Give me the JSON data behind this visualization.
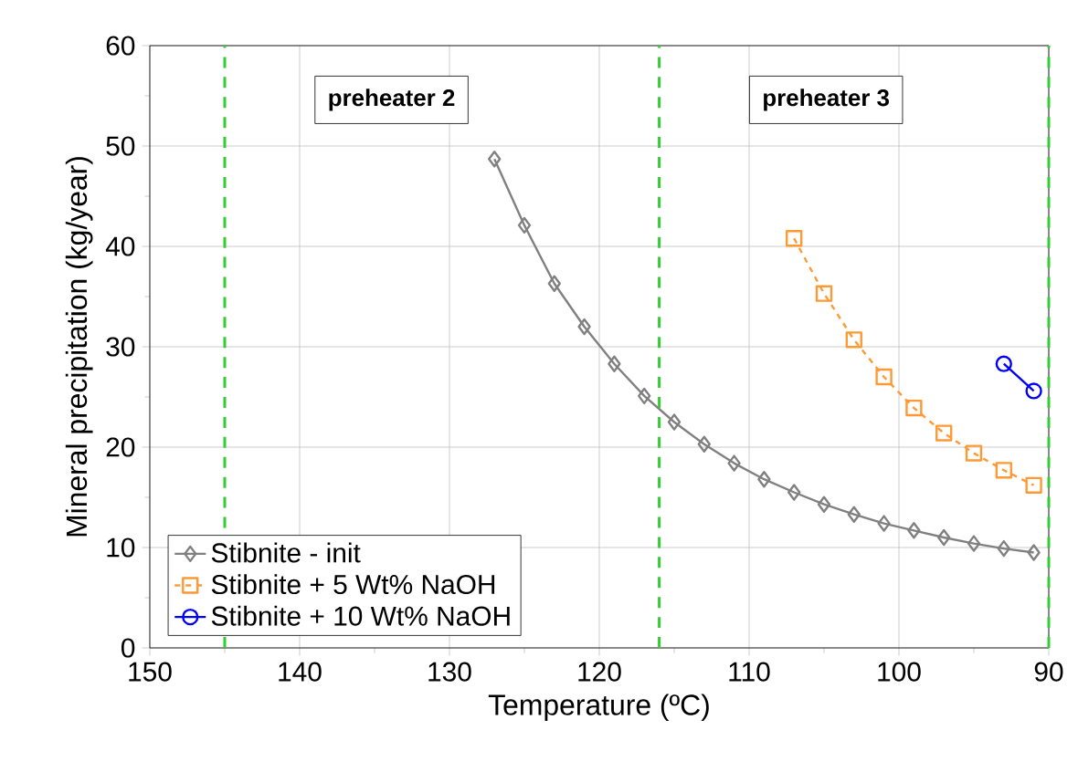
{
  "chart_data": {
    "type": "line",
    "xlabel": "Temperature (ºC)",
    "ylabel": "Mineral precipitation (kg/year)",
    "xlim": [
      150,
      90
    ],
    "ylim": [
      0,
      60
    ],
    "xticks": [
      150,
      140,
      130,
      120,
      110,
      100,
      90
    ],
    "yticks": [
      0,
      10,
      20,
      30,
      40,
      50,
      60
    ],
    "grid": true,
    "legend": "bottom left",
    "series": [
      {
        "name": "Stibnite - init",
        "color": "#808080",
        "marker": "diamond",
        "line_style": "solid",
        "x": [
          127,
          125,
          123,
          121,
          119,
          117,
          115,
          113,
          111,
          109,
          107,
          105,
          103,
          101,
          99,
          97,
          95,
          93,
          91
        ],
        "values": [
          48.7,
          42.1,
          36.3,
          32.0,
          28.3,
          25.1,
          22.5,
          20.3,
          18.4,
          16.8,
          15.5,
          14.3,
          13.3,
          12.4,
          11.7,
          11.0,
          10.4,
          9.9,
          9.5
        ]
      },
      {
        "name": "Stibnite + 5 Wt% NaOH",
        "color": "#ff9933",
        "marker": "square",
        "line_style": "dashed",
        "x": [
          107,
          105,
          103,
          101,
          99,
          97,
          95,
          93,
          91
        ],
        "values": [
          40.8,
          35.3,
          30.7,
          27.0,
          23.9,
          21.4,
          19.4,
          17.7,
          16.2
        ]
      },
      {
        "name": "Stibnite + 10 Wt% NaOH",
        "color": "#0000ff",
        "marker": "circle",
        "line_style": "solid",
        "x": [
          93,
          91
        ],
        "values": [
          28.3,
          25.6
        ]
      }
    ],
    "ref_lines": [
      {
        "axis": "x",
        "value": 145,
        "color": "#33cc33",
        "line_style": "dashed"
      },
      {
        "axis": "x",
        "value": 116,
        "color": "#33cc33",
        "line_style": "dashed"
      },
      {
        "axis": "x",
        "value": 90,
        "color": "#33cc33",
        "line_style": "dashed"
      }
    ],
    "annotations": [
      "preheater 2",
      "preheater 3"
    ]
  }
}
